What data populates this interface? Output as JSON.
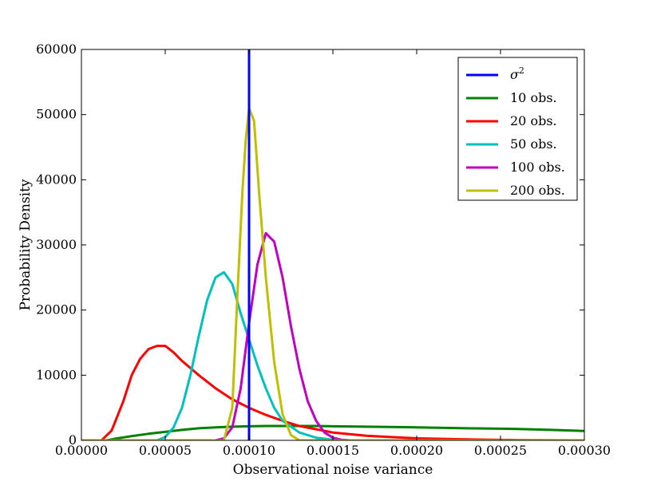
{
  "chart_data": {
    "type": "line",
    "xlabel": "Observational noise variance",
    "ylabel": "Probability Density",
    "xlim": [
      0,
      0.0003
    ],
    "ylim": [
      0,
      60000
    ],
    "x_ticks": [
      "0.00000",
      "0.00005",
      "0.00010",
      "0.00015",
      "0.00020",
      "0.00025",
      "0.00030"
    ],
    "y_ticks": [
      "0",
      "10000",
      "20000",
      "30000",
      "40000",
      "50000",
      "60000"
    ],
    "grid": false,
    "legend_position": "top-right",
    "vline": {
      "name": "σ2",
      "x": 0.0001,
      "color": "#0000ff"
    },
    "series": [
      {
        "name": "10 obs.",
        "color": "#008000",
        "x": [
          0.0,
          1.5e-05,
          2e-05,
          3e-05,
          4e-05,
          5e-05,
          6e-05,
          7e-05,
          8e-05,
          9e-05,
          0.0001,
          0.00011,
          0.00012,
          0.00013,
          0.00014,
          0.00015,
          0.00017,
          0.0002,
          0.00023,
          0.00026,
          0.00028,
          0.0003
        ],
        "y": [
          0,
          0,
          250,
          650,
          1000,
          1300,
          1600,
          1850,
          2000,
          2100,
          2150,
          2200,
          2200,
          2200,
          2200,
          2150,
          2100,
          2000,
          1850,
          1750,
          1600,
          1450
        ]
      },
      {
        "name": "20 obs.",
        "color": "#ff0000",
        "x": [
          0.0,
          1.2e-05,
          1.8e-05,
          2.5e-05,
          3e-05,
          3.5e-05,
          4e-05,
          4.5e-05,
          5e-05,
          5.5e-05,
          6e-05,
          7e-05,
          8e-05,
          9e-05,
          0.0001,
          0.00011,
          0.00012,
          0.00013,
          0.00015,
          0.00017,
          0.0002,
          0.00023,
          0.00026,
          0.0003
        ],
        "y": [
          0,
          0,
          1500,
          6000,
          10000,
          12500,
          14000,
          14500,
          14500,
          13500,
          12200,
          10000,
          8000,
          6300,
          5000,
          3900,
          3000,
          2200,
          1200,
          700,
          300,
          150,
          50,
          0
        ]
      },
      {
        "name": "50 obs.",
        "color": "#00bfbf",
        "x": [
          0.0,
          4.5e-05,
          5e-05,
          5.5e-05,
          6e-05,
          6.5e-05,
          7e-05,
          7.5e-05,
          8e-05,
          8.5e-05,
          9e-05,
          9.5e-05,
          0.0001,
          0.000105,
          0.00011,
          0.000115,
          0.00012,
          0.00013,
          0.00014,
          0.00015,
          0.00016,
          0.0003
        ],
        "y": [
          0,
          0,
          500,
          2000,
          5000,
          10000,
          16000,
          21500,
          25000,
          25800,
          24000,
          19500,
          15500,
          11500,
          8000,
          5000,
          3000,
          1200,
          400,
          100,
          0,
          0
        ]
      },
      {
        "name": "100 obs.",
        "color": "#bf00bf",
        "x": [
          0.0,
          8e-05,
          8.5e-05,
          9e-05,
          9.5e-05,
          0.0001,
          0.000105,
          0.00011,
          0.000115,
          0.00012,
          0.000125,
          0.00013,
          0.000135,
          0.00014,
          0.000145,
          0.00015,
          0.000155,
          0.00016,
          0.0003
        ],
        "y": [
          0,
          0,
          300,
          2000,
          8000,
          18000,
          27000,
          31800,
          30500,
          25000,
          17500,
          11000,
          6000,
          3000,
          1200,
          400,
          100,
          0,
          0
        ]
      },
      {
        "name": "200 obs.",
        "color": "#bfbf00",
        "x": [
          0.0,
          8.5e-05,
          9e-05,
          9.3e-05,
          9.6e-05,
          9.8e-05,
          0.0001,
          0.000103,
          0.000106,
          0.00011,
          0.000115,
          0.00012,
          0.000125,
          0.00013,
          0.00014,
          0.0003
        ],
        "y": [
          0,
          0,
          5000,
          22000,
          38000,
          46000,
          51000,
          49000,
          38000,
          25000,
          12000,
          4000,
          800,
          0,
          0,
          0
        ]
      }
    ]
  }
}
